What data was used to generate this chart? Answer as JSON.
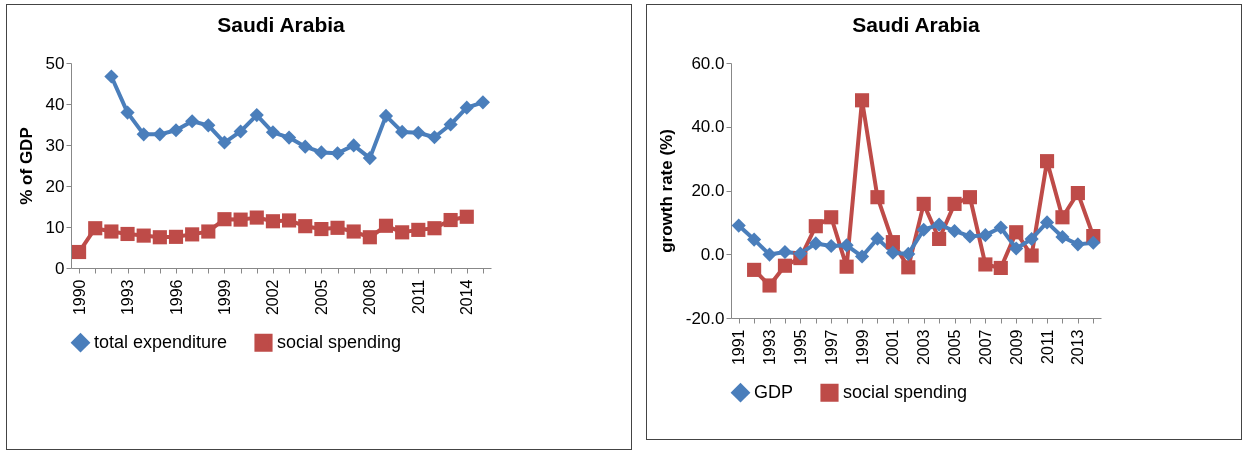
{
  "chart_data": [
    {
      "type": "line",
      "title": "Saudi Arabia",
      "ylabel": "% of GDP",
      "categories": [
        "1990",
        null,
        null,
        "1993",
        null,
        null,
        "1996",
        null,
        null,
        "1999",
        null,
        null,
        "2002",
        null,
        null,
        "2005",
        null,
        null,
        "2008",
        null,
        null,
        "2011",
        null,
        null,
        "2014",
        null
      ],
      "ylim": [
        0,
        50
      ],
      "yticks": [
        0,
        10,
        20,
        30,
        40,
        50
      ],
      "legend": "bottom",
      "grid": false,
      "series": [
        {
          "name": "total expenditure",
          "color": "#4a7ebb",
          "marker": "diamond",
          "values": [
            null,
            null,
            46.7,
            37.9,
            32.6,
            32.6,
            33.6,
            35.8,
            34.8,
            30.6,
            33.3,
            37.3,
            33.1,
            31.8,
            29.6,
            28.2,
            28.0,
            29.9,
            26.8,
            37.1,
            33.2,
            33.0,
            31.9,
            35.0,
            39.1,
            40.4
          ]
        },
        {
          "name": "social spending",
          "color": "#be4b48",
          "marker": "square",
          "values": [
            3.9,
            9.7,
            8.9,
            8.3,
            7.9,
            7.5,
            7.6,
            8.2,
            8.9,
            11.9,
            11.8,
            12.3,
            11.4,
            11.6,
            10.2,
            9.5,
            9.8,
            8.9,
            7.5,
            10.3,
            8.7,
            9.3,
            9.7,
            11.7,
            12.5,
            null
          ]
        }
      ]
    },
    {
      "type": "line",
      "title": "Saudi Arabia",
      "ylabel": "growth rate (%)",
      "categories": [
        "1991",
        null,
        "1993",
        null,
        "1995",
        null,
        "1997",
        null,
        "1999",
        null,
        "2001",
        null,
        "2003",
        null,
        "2005",
        null,
        "2007",
        null,
        "2009",
        null,
        "2011",
        null,
        "2013",
        null
      ],
      "ylim": [
        -20,
        60
      ],
      "yticks": [
        {
          "value": -20,
          "label": "-20.0"
        },
        {
          "value": 0,
          "label": "0.0"
        },
        {
          "value": 20,
          "label": "20.0"
        },
        {
          "value": 40,
          "label": "40.0"
        },
        {
          "value": 60,
          "label": "60.0"
        }
      ],
      "legend": "bottom",
      "grid": false,
      "series": [
        {
          "name": "GDP",
          "color": "#4a7ebb",
          "marker": "diamond",
          "values": [
            9.0,
            4.6,
            -0.1,
            0.7,
            0.2,
            3.4,
            2.6,
            2.8,
            -0.7,
            4.9,
            0.5,
            0.1,
            7.7,
            9.3,
            7.3,
            5.6,
            6.0,
            8.4,
            1.8,
            4.8,
            10.0,
            5.4,
            3.1,
            3.6
          ]
        },
        {
          "name": "social spending",
          "color": "#be4b48",
          "marker": "square",
          "values": [
            null,
            -4.9,
            -9.8,
            -3.6,
            -1.2,
            8.8,
            11.6,
            -3.9,
            48.3,
            17.9,
            3.8,
            -4.1,
            15.8,
            4.8,
            15.8,
            17.9,
            -3.2,
            -4.3,
            6.9,
            -0.4,
            29.2,
            11.6,
            19.2,
            5.7
          ]
        }
      ]
    }
  ]
}
